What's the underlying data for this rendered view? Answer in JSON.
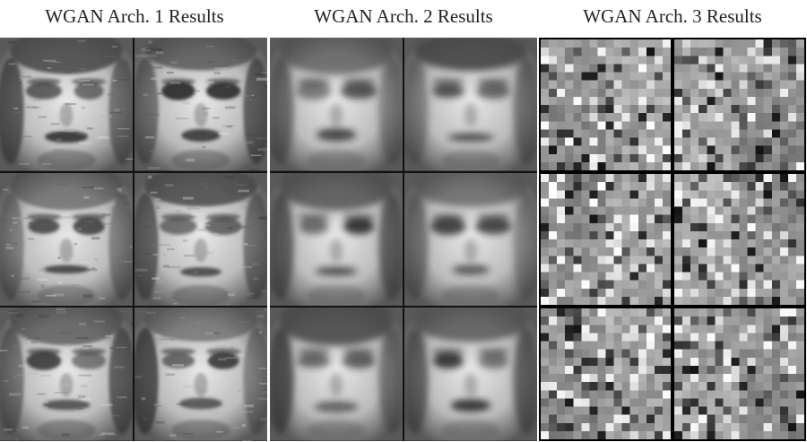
{
  "panels": [
    {
      "title": "WGAN Arch. 1 Results",
      "tone": "sharp"
    },
    {
      "title": "WGAN Arch. 2 Results",
      "tone": "soft"
    },
    {
      "title": "WGAN Arch. 3 Results",
      "tone": "patchy"
    }
  ],
  "colors": {
    "background": "#ffffff",
    "grid_border": "#111111",
    "title_text": "#222222"
  }
}
